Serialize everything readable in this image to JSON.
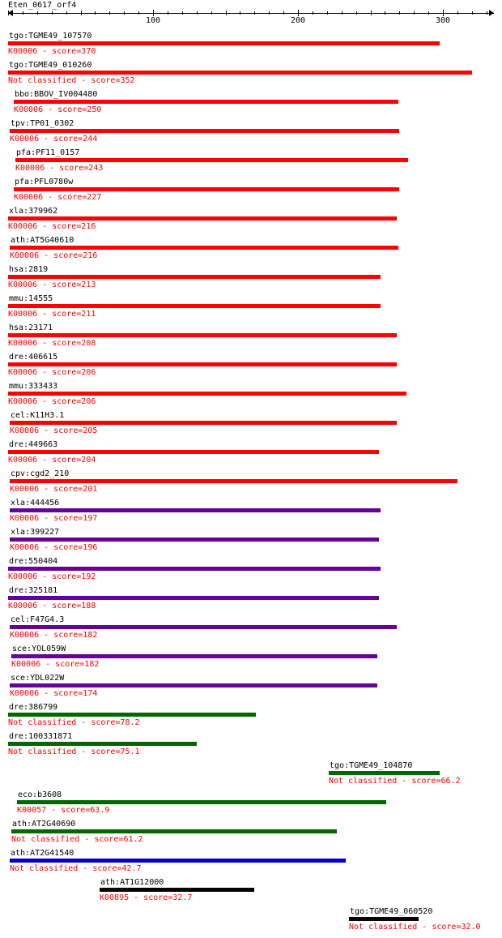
{
  "axis": {
    "title": "Eten_0617_orf4",
    "ticks": [
      {
        "value": 100,
        "label": "100"
      },
      {
        "value": 200,
        "label": "200"
      },
      {
        "value": 300,
        "label": "300"
      }
    ]
  },
  "colors": {
    "red": "#ff0000",
    "purple": "#660099",
    "green": "#006600",
    "blue": "#0000cc",
    "black": "#000000"
  },
  "hits": [
    {
      "name": "tgo:TGME49_107570",
      "annotation": "K00006 - score=370",
      "start": 1,
      "end": 298,
      "color": "red"
    },
    {
      "name": "tgo:TGME49_010260",
      "annotation": "Not classified - score=352",
      "start": 1,
      "end": 320,
      "color": "red"
    },
    {
      "name": "bbo:BBOV_IV004480",
      "annotation": "K00006 - score=250",
      "start": 5,
      "end": 269,
      "color": "red"
    },
    {
      "name": "tpv:TP01_0302",
      "annotation": "K00006 - score=244",
      "start": 2,
      "end": 270,
      "color": "red"
    },
    {
      "name": "pfa:PF11_0157",
      "annotation": "K00006 - score=243",
      "start": 6,
      "end": 276,
      "color": "red"
    },
    {
      "name": "pfa:PFL0780w",
      "annotation": "K00006 - score=227",
      "start": 5,
      "end": 270,
      "color": "red"
    },
    {
      "name": "xla:379962",
      "annotation": "K00006 - score=216",
      "start": 1,
      "end": 268,
      "color": "red"
    },
    {
      "name": "ath:AT5G40610",
      "annotation": "K00006 - score=216",
      "start": 2,
      "end": 269,
      "color": "red"
    },
    {
      "name": "hsa:2819",
      "annotation": "K00006 - score=213",
      "start": 1,
      "end": 257,
      "color": "red"
    },
    {
      "name": "mmu:14555",
      "annotation": "K00006 - score=211",
      "start": 1,
      "end": 257,
      "color": "red"
    },
    {
      "name": "hsa:23171",
      "annotation": "K00006 - score=208",
      "start": 1,
      "end": 268,
      "color": "red"
    },
    {
      "name": "dre:406615",
      "annotation": "K00006 - score=206",
      "start": 1,
      "end": 268,
      "color": "red"
    },
    {
      "name": "mmu:333433",
      "annotation": "K00006 - score=206",
      "start": 1,
      "end": 275,
      "color": "red"
    },
    {
      "name": "cel:K11H3.1",
      "annotation": "K00006 - score=205",
      "start": 2,
      "end": 268,
      "color": "red"
    },
    {
      "name": "dre:449663",
      "annotation": "K00006 - score=204",
      "start": 1,
      "end": 256,
      "color": "red"
    },
    {
      "name": "cpv:cgd2_210",
      "annotation": "K00006 - score=201",
      "start": 2,
      "end": 310,
      "color": "red"
    },
    {
      "name": "xla:444456",
      "annotation": "K00006 - score=197",
      "start": 2,
      "end": 257,
      "color": "purple"
    },
    {
      "name": "xla:399227",
      "annotation": "K00006 - score=196",
      "start": 2,
      "end": 256,
      "color": "purple"
    },
    {
      "name": "dre:550404",
      "annotation": "K00006 - score=192",
      "start": 1,
      "end": 257,
      "color": "purple"
    },
    {
      "name": "dre:325181",
      "annotation": "K00006 - score=188",
      "start": 1,
      "end": 256,
      "color": "purple"
    },
    {
      "name": "cel:F47G4.3",
      "annotation": "K00006 - score=182",
      "start": 2,
      "end": 268,
      "color": "purple"
    },
    {
      "name": "sce:YOL059W",
      "annotation": "K00006 - score=182",
      "start": 3,
      "end": 255,
      "color": "purple"
    },
    {
      "name": "sce:YDL022W",
      "annotation": "K00006 - score=174",
      "start": 2,
      "end": 255,
      "color": "purple"
    },
    {
      "name": "dre:386799",
      "annotation": "Not classified - score=78.2",
      "start": 1,
      "end": 171,
      "color": "green"
    },
    {
      "name": "dre:100331871",
      "annotation": "Not classified - score=75.1",
      "start": 1,
      "end": 130,
      "color": "green"
    },
    {
      "name": "tgo:TGME49_104870",
      "annotation": "Not classified - score=66.2",
      "start": 222,
      "end": 298,
      "color": "green"
    },
    {
      "name": "eco:b3608",
      "annotation": "K00057 - score=63.9",
      "start": 7,
      "end": 261,
      "color": "green"
    },
    {
      "name": "ath:AT2G40690",
      "annotation": "Not classified - score=61.2",
      "start": 3,
      "end": 227,
      "color": "green"
    },
    {
      "name": "ath:AT2G41540",
      "annotation": "Not classified - score=42.7",
      "start": 2,
      "end": 233,
      "color": "blue"
    },
    {
      "name": "ath:AT1G12000",
      "annotation": "K00895 - score=32.7",
      "start": 64,
      "end": 170,
      "color": "black"
    },
    {
      "name": "tgo:TGME49_060520",
      "annotation": "Not classified - score=32.0",
      "start": 236,
      "end": 283,
      "color": "black"
    }
  ]
}
